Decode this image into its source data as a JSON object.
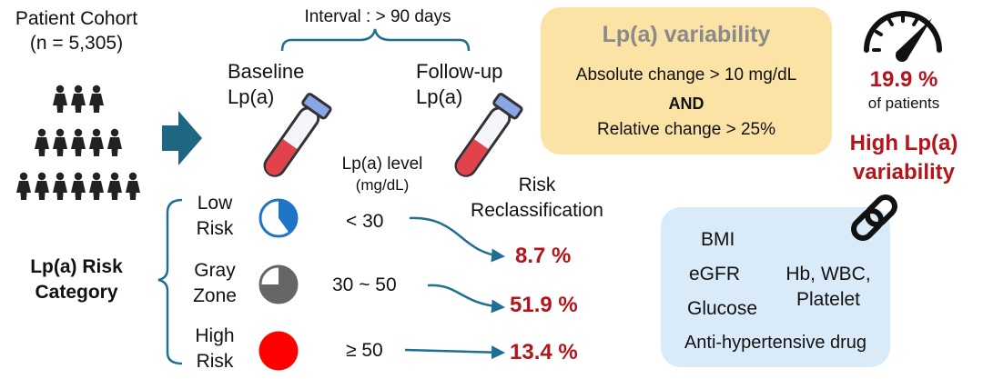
{
  "cohort": {
    "title": "Patient Cohort",
    "n": "(n = 5,305)"
  },
  "risk_category": {
    "line1": "Lp(a) Risk",
    "line2": "Category"
  },
  "interval": "Interval : > 90 days",
  "baseline": {
    "line1": "Baseline",
    "line2": "Lp(a)"
  },
  "followup": {
    "line1": "Follow-up",
    "line2": "Lp(a)"
  },
  "level_header": {
    "line1": "Lp(a) level",
    "line2": "(mg/dL)"
  },
  "reclass_header": {
    "line1": "Risk",
    "line2": "Reclassification"
  },
  "categories": [
    {
      "line1": "Low",
      "line2": "Risk",
      "threshold": "< 30",
      "percent": "8.7 %",
      "pie_fraction": 0.4,
      "color": "#1f74c7"
    },
    {
      "line1": "Gray",
      "line2": "Zone",
      "threshold": "30 ~ 50",
      "percent": "51.9 %",
      "pie_fraction": 0.75,
      "color": "#666666"
    },
    {
      "line1": "High",
      "line2": "Risk",
      "threshold": "≥ 50",
      "percent": "13.4 %",
      "pie_fraction": 1.0,
      "color": "#ff0000"
    }
  ],
  "variability_def": {
    "title": "Lp(a) variability",
    "cond1": "Absolute change > 10 mg/dL",
    "and": "AND",
    "cond2": "Relative change > 25%"
  },
  "result": {
    "percent": "19.9 %",
    "of_patients": "of patients",
    "label1": "High Lp(a)",
    "label2": "variability"
  },
  "factors": {
    "bmi": "BMI",
    "egfr": "eGFR",
    "glucose": "Glucose",
    "hb": "Hb, WBC,",
    "platelet": "Platelet",
    "drug": "Anti-hypertensive drug"
  },
  "icons": {
    "gauge": "gauge-icon",
    "chain": "chain-link-icon",
    "people": "people-icon",
    "tube": "test-tube-icon",
    "arrow": "arrow-right-icon"
  },
  "colors": {
    "accent_red": "#b3151b",
    "tube_blood": "#e2424a",
    "tube_cap": "#8aa6e6",
    "arrow": "#1f6683",
    "yellow_box": "#fbe3a6",
    "blue_box": "#d9ebf8",
    "connector": "#1f6f93"
  }
}
